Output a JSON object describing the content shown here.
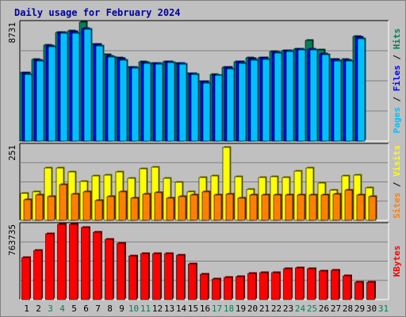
{
  "chart_data": {
    "type": "bar",
    "title": "Daily usage for February 2024",
    "categories": [
      "1",
      "2",
      "3",
      "4",
      "5",
      "6",
      "7",
      "8",
      "9",
      "10",
      "11",
      "12",
      "13",
      "14",
      "15",
      "16",
      "17",
      "18",
      "19",
      "20",
      "21",
      "22",
      "23",
      "24",
      "25",
      "26",
      "27",
      "28",
      "29",
      "30",
      "31"
    ],
    "weekend_days": [
      "3",
      "4",
      "10",
      "11",
      "17",
      "18",
      "24",
      "25",
      "31"
    ],
    "panels": [
      {
        "name": "hits-files-pages",
        "ymax_label": "8731",
        "ylim": [
          0,
          8731
        ],
        "axis_label_parts": [
          "Pages",
          "Files",
          "Hits"
        ],
        "series": [
          {
            "name": "Hits",
            "color": "#00805c",
            "values": [
              4980,
              6010,
              7030,
              7980,
              8080,
              8731,
              7080,
              6370,
              6120,
              5400,
              5810,
              5730,
              5840,
              5720,
              4950,
              4340,
              4910,
              5440,
              5800,
              6090,
              6110,
              6550,
              6640,
              6780,
              7400,
              6710,
              6020,
              5970,
              7660,
              null,
              null
            ]
          },
          {
            "name": "Files",
            "color": "#0000ff",
            "values": [
              4980,
              5960,
              7000,
              8000,
              8010,
              8290,
              7080,
              6240,
              6060,
              5390,
              5760,
              5710,
              5820,
              5720,
              4950,
              4340,
              4860,
              5390,
              5800,
              6040,
              6110,
              6530,
              6640,
              6780,
              6760,
              6400,
              5990,
              5960,
              7630,
              null,
              null
            ]
          },
          {
            "name": "Pages",
            "color": "#00c0ff",
            "values": [
              4880,
              5860,
              6930,
              7900,
              7920,
              8220,
              6990,
              6170,
              5960,
              5330,
              5700,
              5630,
              5740,
              5620,
              4870,
              4250,
              4810,
              5300,
              5710,
              5960,
              6010,
              6440,
              6580,
              6690,
              6700,
              6320,
              5900,
              5870,
              7520,
              null,
              null
            ]
          }
        ]
      },
      {
        "name": "visits-sites",
        "ymax_label": "251",
        "ylim": [
          0,
          251
        ],
        "axis_label_parts": [
          "Sites",
          "Visits"
        ],
        "series": [
          {
            "name": "Visits",
            "color": "#ffff00",
            "values": [
              90,
              95,
              175,
              175,
              160,
              130,
              148,
              150,
              162,
              140,
              172,
              178,
              140,
              128,
              95,
              142,
              148,
              244,
              145,
              102,
              142,
              144,
              142,
              163,
              175,
              125,
              100,
              148,
              150,
              108,
              null
            ]
          },
          {
            "name": "Sites",
            "color": "#ff8000",
            "values": [
              68,
              84,
              80,
              118,
              88,
              96,
              66,
              80,
              96,
              74,
              88,
              92,
              75,
              80,
              84,
              95,
              84,
              88,
              75,
              84,
              84,
              84,
              84,
              84,
              84,
              84,
              86,
              100,
              84,
              78,
              null
            ]
          }
        ]
      },
      {
        "name": "kbytes",
        "ymax_label": "763735",
        "ylim": [
          0,
          763735
        ],
        "axis_label_parts": [
          "KBytes"
        ],
        "series": [
          {
            "name": "KBytes",
            "color": "#ff0000",
            "values": [
              430000,
              500000,
              670000,
              763735,
              763735,
              728000,
              680000,
              610000,
              570000,
              440000,
              470000,
              465000,
              470000,
              450000,
              360000,
              255000,
              210000,
              225000,
              230000,
              265000,
              275000,
              275000,
              310000,
              320000,
              310000,
              290000,
              300000,
              240000,
              175000,
              175000,
              null
            ]
          }
        ]
      }
    ]
  }
}
